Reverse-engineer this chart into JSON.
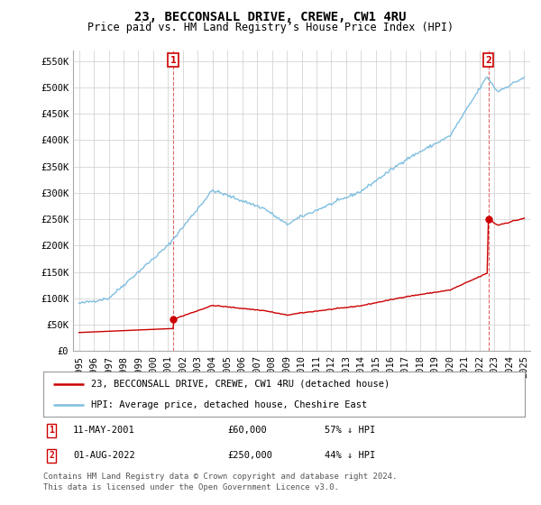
{
  "title": "23, BECCONSALL DRIVE, CREWE, CW1 4RU",
  "subtitle": "Price paid vs. HM Land Registry’s House Price Index (HPI)",
  "ylim": [
    0,
    570000
  ],
  "yticks": [
    0,
    50000,
    100000,
    150000,
    200000,
    250000,
    300000,
    350000,
    400000,
    450000,
    500000,
    550000
  ],
  "ytick_labels": [
    "£0",
    "£50K",
    "£100K",
    "£150K",
    "£200K",
    "£250K",
    "£300K",
    "£350K",
    "£400K",
    "£450K",
    "£500K",
    "£550K"
  ],
  "hpi_color": "#7fbfdf",
  "price_color": "#cc0000",
  "marker_color": "#cc0000",
  "grid_color": "#cccccc",
  "background_color": "#ffffff",
  "sale1_year": 2001.36,
  "sale1_price": 60000,
  "sale2_year": 2022.58,
  "sale2_price": 250000,
  "legend_line1": "23, BECCONSALL DRIVE, CREWE, CW1 4RU (detached house)",
  "legend_line2": "HPI: Average price, detached house, Cheshire East",
  "table_row1": [
    "1",
    "11-MAY-2001",
    "£60,000",
    "57% ↓ HPI"
  ],
  "table_row2": [
    "2",
    "01-AUG-2022",
    "£250,000",
    "44% ↓ HPI"
  ],
  "footnote1": "Contains HM Land Registry data © Crown copyright and database right 2024.",
  "footnote2": "This data is licensed under the Open Government Licence v3.0.",
  "title_fontsize": 10,
  "subtitle_fontsize": 8.5,
  "tick_fontsize": 7.5,
  "xlim_left": 1994.6,
  "xlim_right": 2025.4
}
